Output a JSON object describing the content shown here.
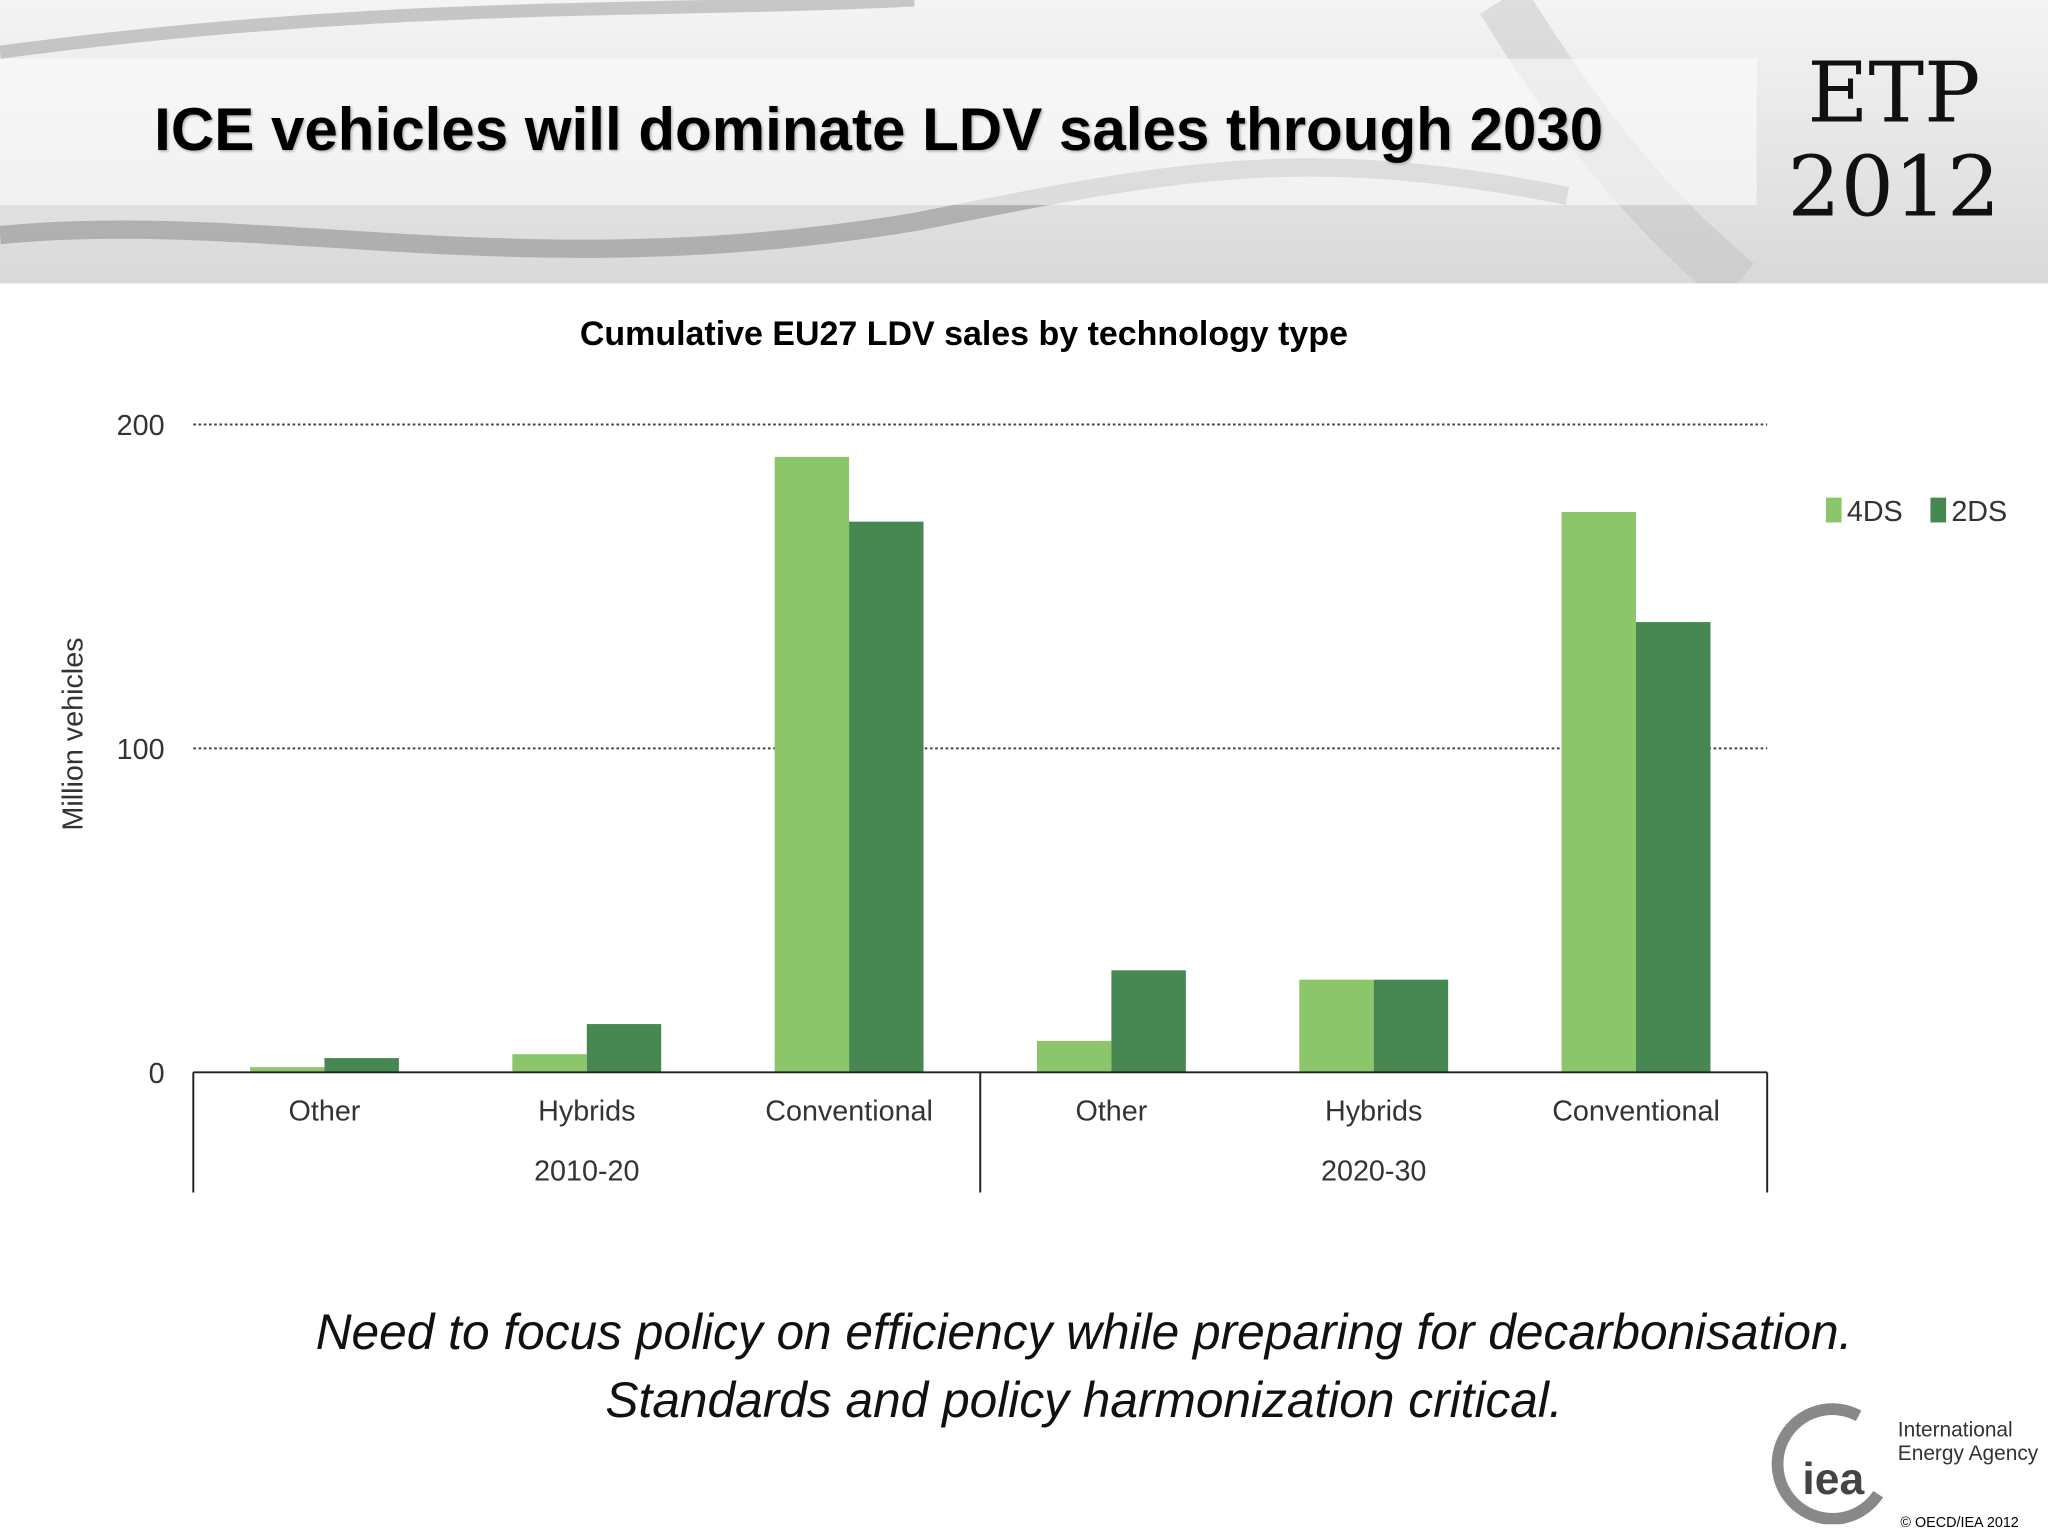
{
  "slide": {
    "title": "ICE vehicles will dominate LDV sales through 2030",
    "badge_line1": "ETP",
    "badge_line2": "2012",
    "caption_line1": "Need to focus policy on efficiency while preparing for decarbonisation.",
    "caption_line2": "Standards and policy harmonization critical.",
    "logo_text_line1": "International",
    "logo_text_line2": "Energy Agency",
    "logo_mark": "iea",
    "copyright": "© OECD/IEA 2012"
  },
  "chart_data": {
    "type": "bar",
    "title": "Cumulative EU27 LDV sales by technology type",
    "ylabel": "Million vehicles",
    "xlabel": "",
    "ylim": [
      0,
      200
    ],
    "yticks": [
      0,
      100,
      200
    ],
    "grid": true,
    "legend_position": "right",
    "groups": [
      "2010-20",
      "2020-30"
    ],
    "categories": [
      "Other",
      "Hybrids",
      "Conventional",
      "Other",
      "Hybrids",
      "Conventional"
    ],
    "series": [
      {
        "name": "4DS",
        "color": "#8bc76a",
        "values": [
          1.6,
          5.6,
          190,
          9.7,
          28.6,
          173
        ]
      },
      {
        "name": "2DS",
        "color": "#468752",
        "values": [
          4.4,
          14.9,
          170,
          31.5,
          28.6,
          139
        ]
      }
    ]
  }
}
